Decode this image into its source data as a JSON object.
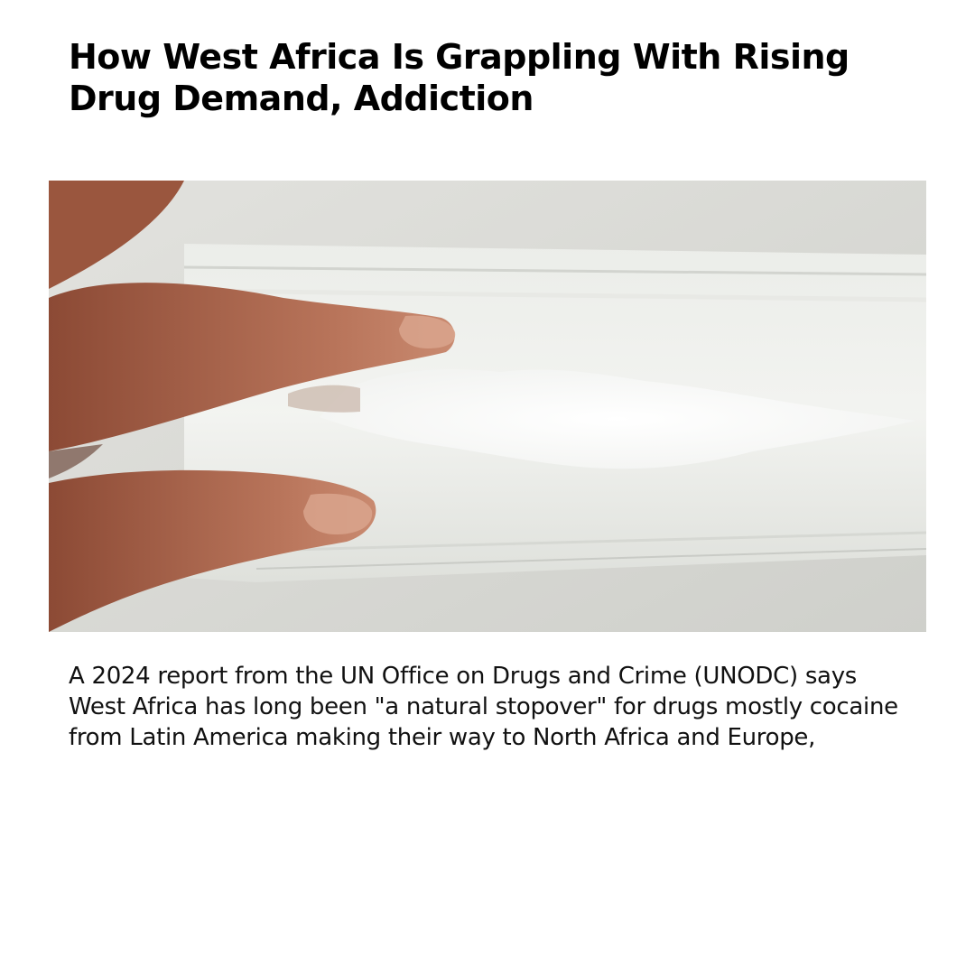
{
  "article": {
    "headline": "How West Africa Is Grappling With Rising Drug Demand, Addiction",
    "body": "A 2024 report from the UN Office on Drugs and Crime (UNODC) says West Africa has long been \"a natural stopover\" for drugs mostly cocaine from Latin America making their way to North Africa and Europe,"
  },
  "photo": {
    "subject": "fingers-holding-bag-of-white-powder"
  },
  "colors": {
    "background": "#ffffff",
    "text": "#000000",
    "wall": "#dcdcd8",
    "skin": "#b06a4e",
    "powder": "#ffffff"
  }
}
